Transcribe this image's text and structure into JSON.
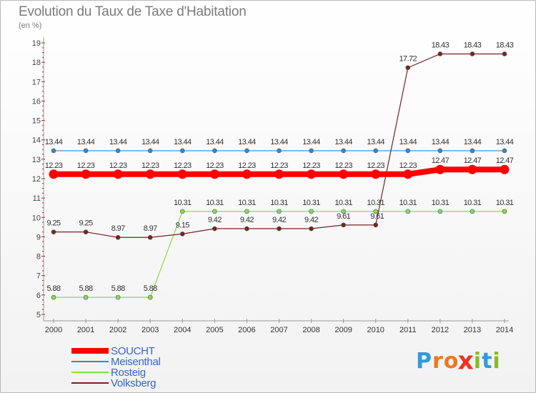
{
  "chart_data": {
    "type": "line",
    "title": "Evolution du Taux de Taxe d'Habitation",
    "subtitle": "(en %)",
    "xlabel": "",
    "ylabel": "(en %)",
    "ylim": [
      5,
      19
    ],
    "yticks": [
      "5",
      "6",
      "7",
      "8",
      "9",
      "10",
      "11",
      "12",
      "13",
      "14",
      "15",
      "16",
      "17",
      "18",
      "19"
    ],
    "categories": [
      "2000",
      "2001",
      "2002",
      "2003",
      "2004",
      "2005",
      "2006",
      "2007",
      "2008",
      "2009",
      "2010",
      "2011",
      "2012",
      "2013",
      "2014"
    ],
    "series": [
      {
        "name": "SOUCHT",
        "color": "#ff0000",
        "values": [
          12.23,
          12.23,
          12.23,
          12.23,
          12.23,
          12.23,
          12.23,
          12.23,
          12.23,
          12.23,
          12.23,
          12.23,
          12.47,
          12.47,
          12.47
        ],
        "labels": [
          "12.23",
          "12.23",
          "12.23",
          "12.23",
          "12.23",
          "12.23",
          "12.23",
          "12.23",
          "12.23",
          "12.23",
          "12.23",
          "12.23",
          "12.47",
          "12.47",
          "12.47"
        ]
      },
      {
        "name": "Meisenthal",
        "color": "#3388cc",
        "values": [
          13.44,
          13.44,
          13.44,
          13.44,
          13.44,
          13.44,
          13.44,
          13.44,
          13.44,
          13.44,
          13.44,
          13.44,
          13.44,
          13.44,
          13.44
        ],
        "labels": [
          "13.44",
          "13.44",
          "13.44",
          "13.44",
          "13.44",
          "13.44",
          "13.44",
          "13.44",
          "13.44",
          "13.44",
          "13.44",
          "13.44",
          "13.44",
          "13.44",
          "13.44"
        ]
      },
      {
        "name": "Rosteig",
        "color": "#88dd44",
        "values": [
          5.88,
          5.88,
          5.88,
          5.88,
          10.31,
          10.31,
          10.31,
          10.31,
          10.31,
          10.31,
          10.31,
          10.31,
          10.31,
          10.31,
          10.31
        ],
        "labels": [
          "5.88",
          "5.88",
          "5.88",
          "5.88",
          "10.31",
          "10.31",
          "10.31",
          "10.31",
          "10.31",
          "10.31",
          "10.31",
          "10.31",
          "10.31",
          "10.31",
          "10.31"
        ]
      },
      {
        "name": "Volksberg",
        "color": "#772222",
        "values": [
          9.25,
          9.25,
          8.97,
          8.97,
          9.15,
          9.42,
          9.42,
          9.42,
          9.42,
          9.61,
          9.61,
          17.72,
          18.43,
          18.43,
          18.43
        ],
        "labels": [
          "9.25",
          "9.25",
          "8.97",
          "8.97",
          "9.15",
          "9.42",
          "9.42",
          "9.42",
          "9.42",
          "9.61",
          "9.61",
          "17.72",
          "18.43",
          "18.43",
          "18.43"
        ]
      }
    ],
    "grid": false,
    "legend_position": "bottom-left"
  },
  "logo": {
    "text": "Proxiti",
    "letters": [
      "P",
      "r",
      "o",
      "x",
      "i",
      "t",
      "i"
    ],
    "colors": [
      "#3399dd",
      "#ee7722",
      "#ee7722",
      "#ee3322",
      "#88bb22",
      "#3399dd",
      "#88bb22"
    ]
  }
}
